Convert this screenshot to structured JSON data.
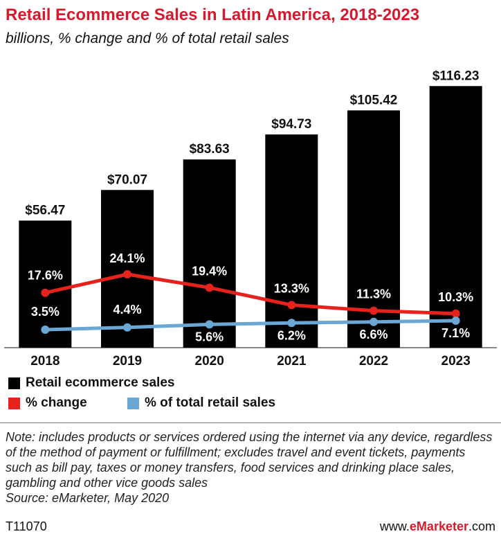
{
  "title": "Retail Ecommerce Sales in Latin America, 2018-2023",
  "subtitle": "billions, % change and % of total retail sales",
  "legend": {
    "sales_label": "Retail ecommerce sales",
    "change_label": "% change",
    "share_label": "% of total retail sales"
  },
  "note": "Note: includes products or services ordered using the internet via any device, regardless of the method of payment or fulfillment; excludes travel and event tickets, payments such as bill pay, taxes or money transfers, food services and drinking place sales, gambling and other vice goods sales",
  "source": "Source: eMarketer, May 2020",
  "footer": {
    "code": "T11070",
    "website_prefix": "www.",
    "website_brand": "eMarketer",
    "website_suffix": ".com"
  },
  "colors": {
    "title": "#d7192c",
    "bar": "#000000",
    "change_line": "#e5231c",
    "share_line": "#6aa7d5"
  },
  "chart_data": {
    "type": "bar",
    "categories": [
      "2018",
      "2019",
      "2020",
      "2021",
      "2022",
      "2023"
    ],
    "series": [
      {
        "name": "Retail ecommerce sales",
        "type": "bar",
        "values": [
          56.47,
          70.07,
          83.63,
          94.73,
          105.42,
          116.23
        ],
        "labels": [
          "$56.47",
          "$70.07",
          "$83.63",
          "$94.73",
          "$105.42",
          "$116.23"
        ]
      },
      {
        "name": "% change",
        "type": "line",
        "values": [
          17.6,
          24.1,
          19.4,
          13.3,
          11.3,
          10.3
        ],
        "labels": [
          "17.6%",
          "24.1%",
          "19.4%",
          "13.3%",
          "11.3%",
          "10.3%"
        ]
      },
      {
        "name": "% of total retail sales",
        "type": "line",
        "values": [
          3.5,
          4.4,
          5.6,
          6.2,
          6.6,
          7.1
        ],
        "labels": [
          "3.5%",
          "4.4%",
          "5.6%",
          "6.2%",
          "6.6%",
          "7.1%"
        ]
      }
    ],
    "title": "Retail Ecommerce Sales in Latin America, 2018-2023",
    "subtitle": "billions, % change and % of total retail sales",
    "xlabel": "",
    "ylabel": "",
    "ylim": [
      0,
      120
    ],
    "grid": false,
    "legend_position": "bottom-left"
  }
}
